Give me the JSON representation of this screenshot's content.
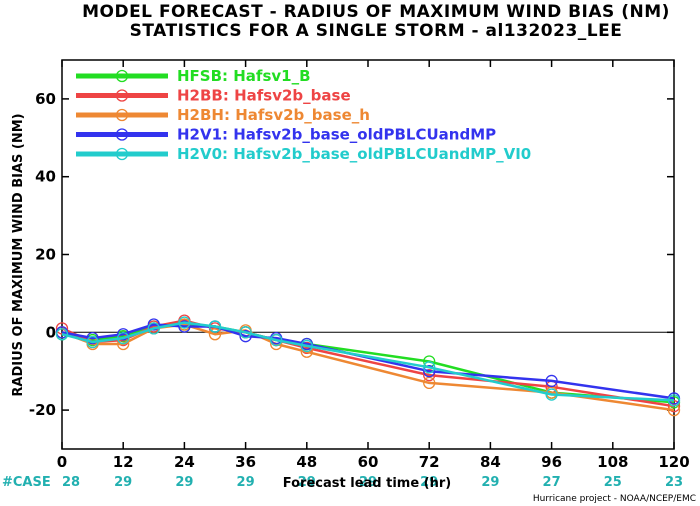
{
  "title_line1": "MODEL FORECAST - RADIUS OF MAXIMUM WIND BIAS (NM)",
  "title_line2": "STATISTICS FOR A SINGLE STORM - al132023_LEE",
  "credit": "Hurricane project - NOAA/NCEP/EMC",
  "case_header": "#CASE",
  "case_color": "#22b0b0",
  "chart_data": {
    "type": "line",
    "xlabel": "Forecast lead time (hr)",
    "ylabel": "RADIUS OF MAXIMUM WIND BIAS (NM)",
    "xlim": [
      0,
      120
    ],
    "ylim": [
      -30,
      70
    ],
    "xticks": [
      0,
      12,
      24,
      36,
      48,
      60,
      72,
      84,
      96,
      108,
      120
    ],
    "yticks": [
      -20,
      0,
      20,
      40,
      60
    ],
    "zero_line": true,
    "legend_position": "top-left",
    "case_counts": [
      28,
      29,
      29,
      29,
      29,
      29,
      29,
      29,
      27,
      25,
      23
    ],
    "series": [
      {
        "name": "HFSB: Hafsv1_B",
        "color": "#22dd22",
        "x": [
          0,
          6,
          12,
          18,
          24,
          30,
          36,
          42,
          48,
          72,
          96,
          120
        ],
        "y": [
          -0.5,
          -2,
          -1,
          1.5,
          2,
          1.5,
          0,
          -2,
          -3,
          -7.5,
          -15.5,
          -18
        ]
      },
      {
        "name": "H2BB: Hafsv2b_base",
        "color": "#ee4444",
        "x": [
          0,
          6,
          12,
          18,
          24,
          30,
          36,
          42,
          48,
          72,
          96,
          120
        ],
        "y": [
          1,
          -2.5,
          -2,
          1.5,
          3,
          1,
          0,
          -2,
          -4,
          -11,
          -14,
          -19
        ]
      },
      {
        "name": "H2BH: Hafsv2b_base_h",
        "color": "#ee8833",
        "x": [
          0,
          6,
          12,
          18,
          24,
          30,
          36,
          42,
          48,
          72,
          96,
          120
        ],
        "y": [
          0,
          -3,
          -3,
          1,
          2,
          -0.5,
          0.5,
          -3,
          -5,
          -13,
          -15.5,
          -20
        ]
      },
      {
        "name": "H2V1: Hafsv2b_base_oldPBLCUandMP",
        "color": "#3333ee",
        "x": [
          0,
          6,
          12,
          18,
          24,
          30,
          36,
          42,
          48,
          72,
          96,
          120
        ],
        "y": [
          0,
          -1.5,
          -0.5,
          2,
          1.5,
          1.5,
          -1,
          -1.5,
          -3,
          -10,
          -12.5,
          -17
        ]
      },
      {
        "name": "H2V0: Hafsv2b_base_oldPBLCUandMP_VI0",
        "color": "#22cccc",
        "x": [
          0,
          6,
          12,
          18,
          24,
          30,
          36,
          42,
          48,
          72,
          96,
          120
        ],
        "y": [
          -0.5,
          -2.5,
          -1.5,
          1,
          2.5,
          1.5,
          0,
          -2,
          -3.5,
          -9,
          -16,
          -17.5
        ]
      }
    ]
  }
}
